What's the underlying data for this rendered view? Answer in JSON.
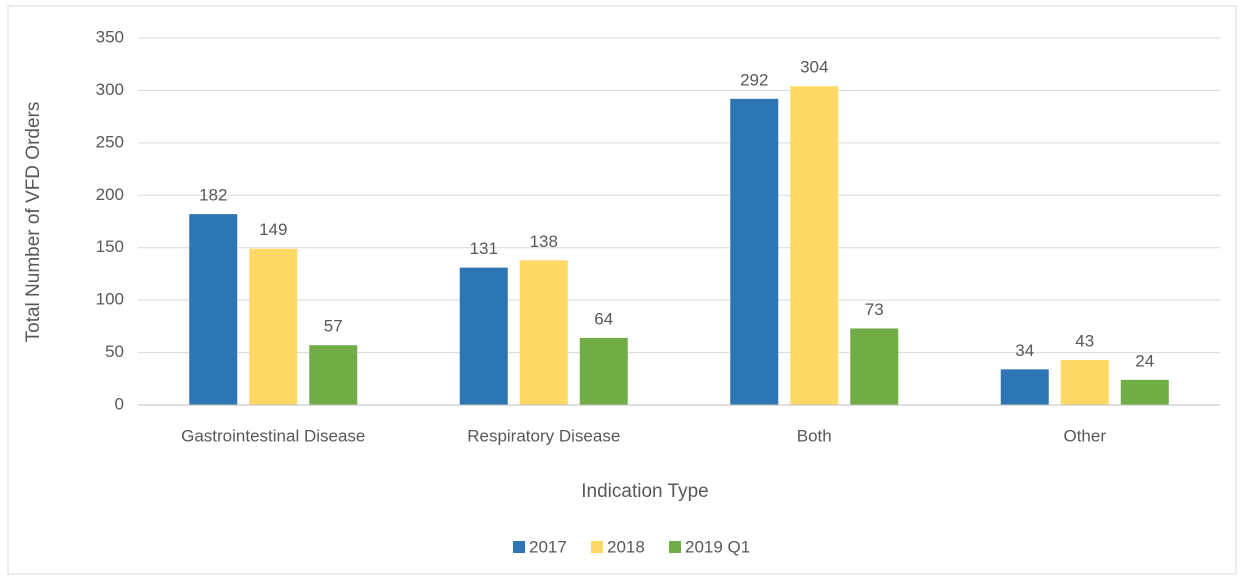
{
  "chart_data": {
    "type": "bar",
    "xlabel": "Indication Type",
    "ylabel": "Total Number of VFD Orders",
    "categories": [
      "Gastrointestinal Disease",
      "Respiratory Disease",
      "Both",
      "Other"
    ],
    "series": [
      {
        "name": "2017",
        "color": "#2e75b6",
        "values": [
          182,
          131,
          292,
          34
        ]
      },
      {
        "name": "2018",
        "color": "#ffd966",
        "values": [
          149,
          138,
          304,
          43
        ]
      },
      {
        "name": "2019 Q1",
        "color": "#70ad47",
        "values": [
          57,
          64,
          73,
          24
        ]
      }
    ],
    "ylim": [
      0,
      350
    ],
    "yticks": [
      0,
      50,
      100,
      150,
      200,
      250,
      300,
      350
    ],
    "grid": true,
    "legend": "bottom",
    "data_labels": true
  }
}
